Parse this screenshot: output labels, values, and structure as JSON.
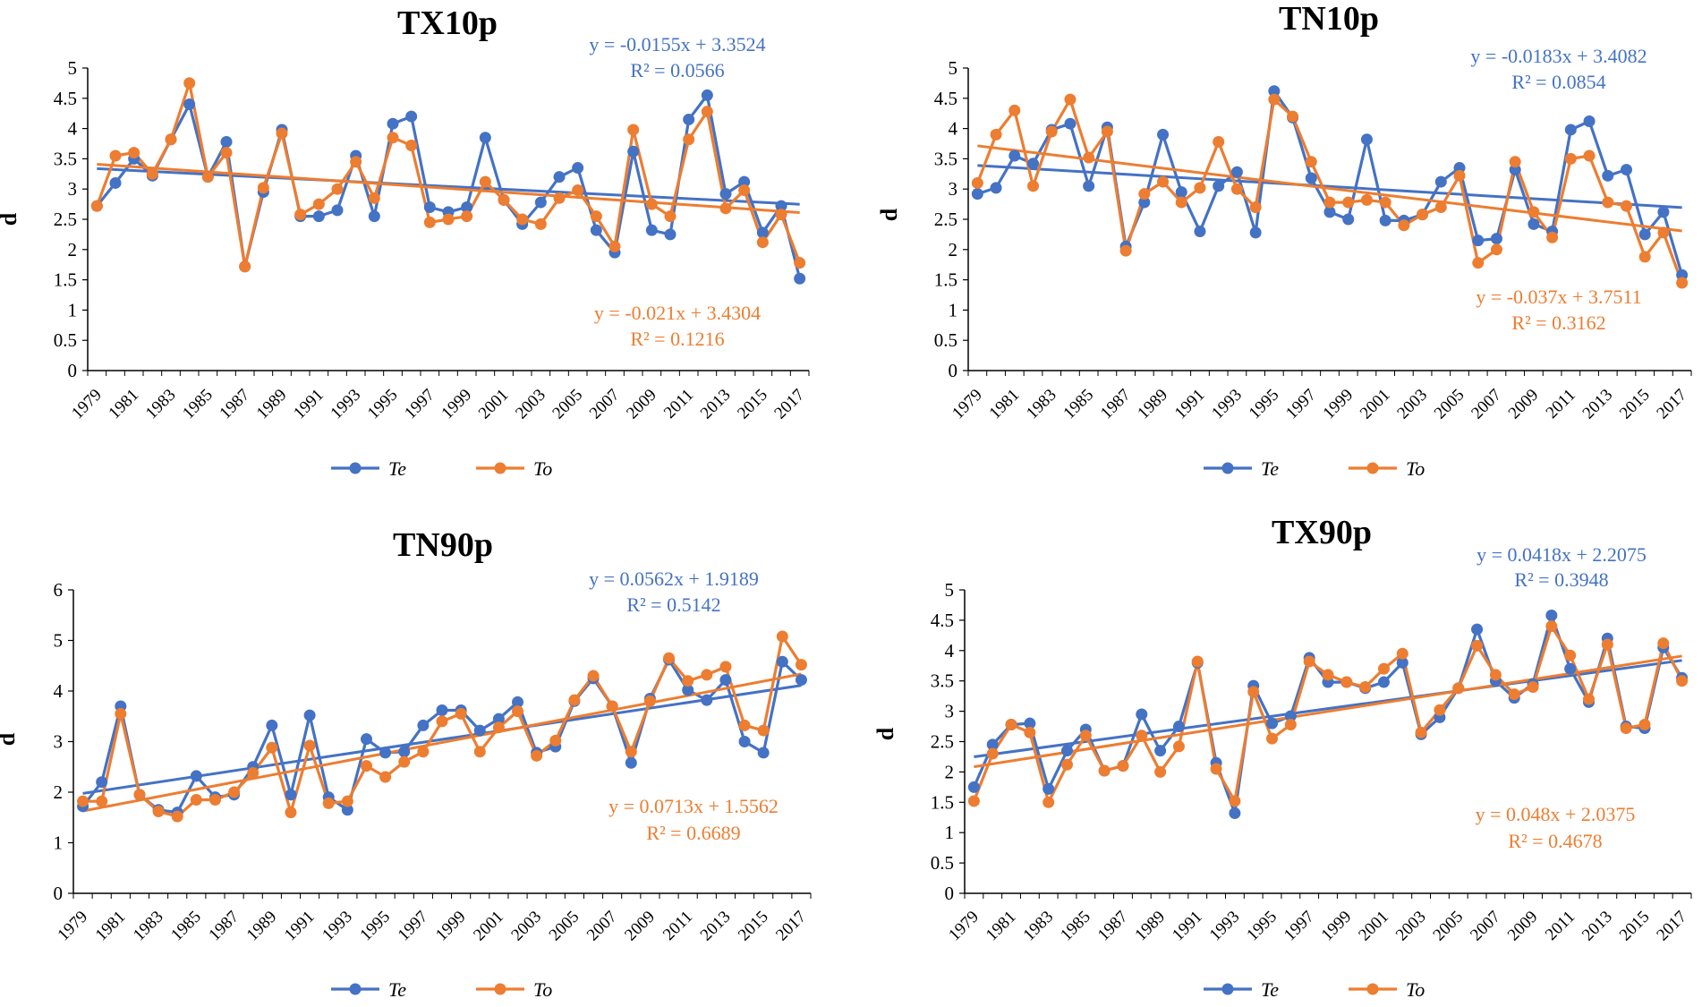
{
  "colors": {
    "te": "#4472C4",
    "to": "#ED7D31",
    "axis": "#000000"
  },
  "charts": [
    {
      "type": "line",
      "title": "TX10p",
      "ylabel": "d",
      "ylim": [
        0,
        5
      ],
      "yticks": [
        "0",
        "0.5",
        "1",
        "1.5",
        "2",
        "2.5",
        "3",
        "3.5",
        "4",
        "4.5",
        "5"
      ],
      "x": [
        1979,
        1980,
        1981,
        1982,
        1983,
        1984,
        1985,
        1986,
        1987,
        1988,
        1989,
        1990,
        1991,
        1992,
        1993,
        1994,
        1995,
        1996,
        1997,
        1998,
        1999,
        2000,
        2001,
        2002,
        2003,
        2004,
        2005,
        2006,
        2007,
        2008,
        2009,
        2010,
        2011,
        2012,
        2013,
        2014,
        2015,
        2016,
        2017
      ],
      "xticks": [
        "1979",
        "1981",
        "1983",
        "1985",
        "1987",
        "1989",
        "1991",
        "1993",
        "1995",
        "1997",
        "1999",
        "2001",
        "2003",
        "2005",
        "2007",
        "2009",
        "2011",
        "2013",
        "2015",
        "2017"
      ],
      "series": [
        {
          "name": "Te",
          "values": [
            2.72,
            3.1,
            3.5,
            3.22,
            3.82,
            4.4,
            3.2,
            3.78,
            1.72,
            2.95,
            3.98,
            2.55,
            2.55,
            2.65,
            3.55,
            2.55,
            4.08,
            4.2,
            2.7,
            2.62,
            2.7,
            3.85,
            2.82,
            2.42,
            2.78,
            3.2,
            3.35,
            2.32,
            1.95,
            3.62,
            2.32,
            2.25,
            4.15,
            4.55,
            2.92,
            3.12,
            2.28,
            2.72,
            1.52
          ],
          "trend": {
            "slope": -0.0155,
            "intercept": 3.3524
          },
          "equation": "y = -0.0155x + 3.3524",
          "r2": "R² = 0.0566"
        },
        {
          "name": "To",
          "values": [
            2.72,
            3.55,
            3.6,
            3.25,
            3.82,
            4.75,
            3.2,
            3.6,
            1.72,
            3.02,
            3.92,
            2.58,
            2.75,
            3.0,
            3.45,
            2.85,
            3.85,
            3.72,
            2.45,
            2.5,
            2.55,
            3.12,
            2.82,
            2.5,
            2.42,
            2.85,
            2.98,
            2.55,
            2.05,
            3.98,
            2.75,
            2.55,
            3.82,
            4.28,
            2.68,
            2.98,
            2.12,
            2.58,
            1.78
          ],
          "trend": {
            "slope": -0.021,
            "intercept": 3.4304
          },
          "equation": "y = -0.021x + 3.4304",
          "r2": "R² = 0.1216"
        }
      ]
    },
    {
      "type": "line",
      "title": "TN10p",
      "ylabel": "d",
      "ylim": [
        0,
        5
      ],
      "yticks": [
        "0",
        "0.5",
        "1",
        "1.5",
        "2",
        "2.5",
        "3",
        "3.5",
        "4",
        "4.5",
        "5"
      ],
      "x": [
        1979,
        1980,
        1981,
        1982,
        1983,
        1984,
        1985,
        1986,
        1987,
        1988,
        1989,
        1990,
        1991,
        1992,
        1993,
        1994,
        1995,
        1996,
        1997,
        1998,
        1999,
        2000,
        2001,
        2002,
        2003,
        2004,
        2005,
        2006,
        2007,
        2008,
        2009,
        2010,
        2011,
        2012,
        2013,
        2014,
        2015,
        2016,
        2017
      ],
      "xticks": [
        "1979",
        "1981",
        "1983",
        "1985",
        "1987",
        "1989",
        "1991",
        "1993",
        "1995",
        "1997",
        "1999",
        "2001",
        "2003",
        "2005",
        "2007",
        "2009",
        "2011",
        "2013",
        "2015",
        "2017"
      ],
      "series": [
        {
          "name": "Te",
          "values": [
            2.92,
            3.02,
            3.55,
            3.42,
            3.98,
            4.08,
            3.05,
            4.02,
            2.05,
            2.78,
            3.9,
            2.95,
            2.3,
            3.05,
            3.28,
            2.28,
            4.62,
            4.18,
            3.18,
            2.62,
            2.5,
            3.82,
            2.48,
            2.48,
            2.58,
            3.12,
            3.35,
            2.15,
            2.18,
            3.32,
            2.42,
            2.3,
            3.98,
            4.12,
            3.22,
            3.32,
            2.25,
            2.62,
            1.58
          ],
          "trend": {
            "slope": -0.0183,
            "intercept": 3.4082
          },
          "equation": "y = -0.0183x + 3.4082",
          "r2": "R² = 0.0854"
        },
        {
          "name": "To",
          "values": [
            3.1,
            3.9,
            4.3,
            3.05,
            3.95,
            4.48,
            3.52,
            3.95,
            1.98,
            2.92,
            3.12,
            2.78,
            3.02,
            3.78,
            3.0,
            2.7,
            4.48,
            4.2,
            3.45,
            2.78,
            2.78,
            2.82,
            2.78,
            2.4,
            2.58,
            2.7,
            3.22,
            1.78,
            2.0,
            3.45,
            2.62,
            2.2,
            3.5,
            3.55,
            2.78,
            2.72,
            1.88,
            2.28,
            1.45
          ],
          "trend": {
            "slope": -0.037,
            "intercept": 3.7511
          },
          "equation": "y = -0.037x + 3.7511",
          "r2": "R² = 0.3162"
        }
      ]
    },
    {
      "type": "line",
      "title": "TN90p",
      "ylabel": "d",
      "ylim": [
        0,
        6
      ],
      "yticks": [
        "0",
        "1",
        "2",
        "3",
        "4",
        "5",
        "6"
      ],
      "x": [
        1979,
        1980,
        1981,
        1982,
        1983,
        1984,
        1985,
        1986,
        1987,
        1988,
        1989,
        1990,
        1991,
        1992,
        1993,
        1994,
        1995,
        1996,
        1997,
        1998,
        1999,
        2000,
        2001,
        2002,
        2003,
        2004,
        2005,
        2006,
        2007,
        2008,
        2009,
        2010,
        2011,
        2012,
        2013,
        2014,
        2015,
        2016,
        2017
      ],
      "xticks": [
        "1979",
        "1981",
        "1983",
        "1985",
        "1987",
        "1989",
        "1991",
        "1993",
        "1995",
        "1997",
        "1999",
        "2001",
        "2003",
        "2005",
        "2007",
        "2009",
        "2011",
        "2013",
        "2015",
        "2017"
      ],
      "series": [
        {
          "name": "Te",
          "values": [
            1.72,
            2.2,
            3.7,
            1.95,
            1.65,
            1.6,
            2.32,
            1.9,
            1.95,
            2.5,
            3.32,
            1.95,
            3.52,
            1.9,
            1.65,
            3.05,
            2.78,
            2.8,
            3.32,
            3.62,
            3.62,
            3.22,
            3.45,
            3.78,
            2.78,
            2.9,
            3.8,
            4.25,
            3.7,
            2.58,
            3.85,
            4.62,
            4.02,
            3.82,
            4.22,
            3.0,
            2.78,
            4.58,
            4.22
          ],
          "trend": {
            "slope": 0.0562,
            "intercept": 1.9189
          },
          "equation": "y = 0.0562x + 1.9189",
          "r2": "R² = 0.5142"
        },
        {
          "name": "To",
          "values": [
            1.82,
            1.82,
            3.55,
            1.95,
            1.62,
            1.52,
            1.85,
            1.85,
            2.0,
            2.38,
            2.88,
            1.6,
            2.92,
            1.78,
            1.82,
            2.52,
            2.3,
            2.6,
            2.8,
            3.4,
            3.55,
            2.8,
            3.28,
            3.6,
            2.72,
            3.02,
            3.82,
            4.3,
            3.7,
            2.8,
            3.8,
            4.65,
            4.2,
            4.32,
            4.48,
            3.32,
            3.22,
            5.08,
            4.52
          ],
          "trend": {
            "slope": 0.0713,
            "intercept": 1.5562
          },
          "equation": "y = 0.0713x + 1.5562",
          "r2": "R² = 0.6689"
        }
      ]
    },
    {
      "type": "line",
      "title": "TX90p",
      "ylabel": "d",
      "ylim": [
        0,
        5
      ],
      "yticks": [
        "0",
        "0.5",
        "1",
        "1.5",
        "2",
        "2.5",
        "3",
        "3.5",
        "4",
        "4.5",
        "5"
      ],
      "x": [
        1979,
        1980,
        1981,
        1982,
        1983,
        1984,
        1985,
        1986,
        1987,
        1988,
        1989,
        1990,
        1991,
        1992,
        1993,
        1994,
        1995,
        1996,
        1997,
        1998,
        1999,
        2000,
        2001,
        2002,
        2003,
        2004,
        2005,
        2006,
        2007,
        2008,
        2009,
        2010,
        2011,
        2012,
        2013,
        2014,
        2015,
        2016,
        2017
      ],
      "xticks": [
        "1979",
        "1981",
        "1983",
        "1985",
        "1987",
        "1989",
        "1991",
        "1993",
        "1995",
        "1997",
        "1999",
        "2001",
        "2003",
        "2005",
        "2007",
        "2009",
        "2011",
        "2013",
        "2015",
        "2017"
      ],
      "series": [
        {
          "name": "Te",
          "values": [
            1.75,
            2.45,
            2.78,
            2.8,
            1.72,
            2.35,
            2.7,
            2.02,
            2.1,
            2.95,
            2.35,
            2.75,
            3.8,
            2.15,
            1.32,
            3.42,
            2.8,
            2.92,
            3.88,
            3.48,
            3.48,
            3.38,
            3.48,
            3.8,
            2.62,
            2.9,
            3.38,
            4.35,
            3.5,
            3.22,
            3.45,
            4.58,
            3.7,
            3.15,
            4.2,
            2.75,
            2.72,
            4.05,
            3.55
          ],
          "trend": {
            "slope": 0.0418,
            "intercept": 2.2075
          },
          "equation": "y = 0.0418x + 2.2075",
          "r2": "R² = 0.3948"
        },
        {
          "name": "To",
          "values": [
            1.52,
            2.3,
            2.78,
            2.65,
            1.5,
            2.12,
            2.6,
            2.02,
            2.1,
            2.6,
            2.0,
            2.42,
            3.82,
            2.05,
            1.52,
            3.32,
            2.55,
            2.78,
            3.82,
            3.6,
            3.48,
            3.4,
            3.7,
            3.95,
            2.65,
            3.02,
            3.38,
            4.08,
            3.6,
            3.28,
            3.4,
            4.4,
            3.92,
            3.2,
            4.1,
            2.72,
            2.78,
            4.12,
            3.5
          ],
          "trend": {
            "slope": 0.048,
            "intercept": 2.0375
          },
          "equation": "y = 0.048x + 2.0375",
          "r2": "R² = 0.4678"
        }
      ]
    }
  ]
}
